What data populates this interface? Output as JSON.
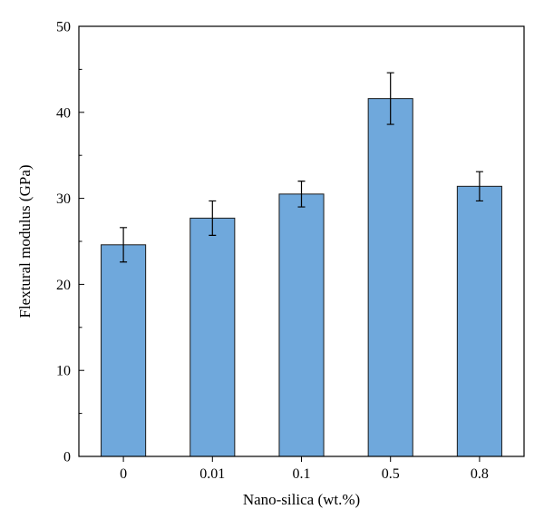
{
  "chart_data": {
    "type": "bar",
    "categories": [
      "0",
      "0.01",
      "0.1",
      "0.5",
      "0.8"
    ],
    "values": [
      24.6,
      27.7,
      30.5,
      41.6,
      31.4
    ],
    "errors": [
      2.0,
      2.0,
      1.5,
      3.0,
      1.7
    ],
    "xlabel": "Nano-silica (wt.%)",
    "ylabel": "Flextural modulus (GPa)",
    "ylim": [
      0,
      50
    ],
    "yticks": [
      0,
      10,
      20,
      30,
      40,
      50
    ],
    "bar_color": "#6fa8dc",
    "grid": false,
    "legend": "none"
  }
}
